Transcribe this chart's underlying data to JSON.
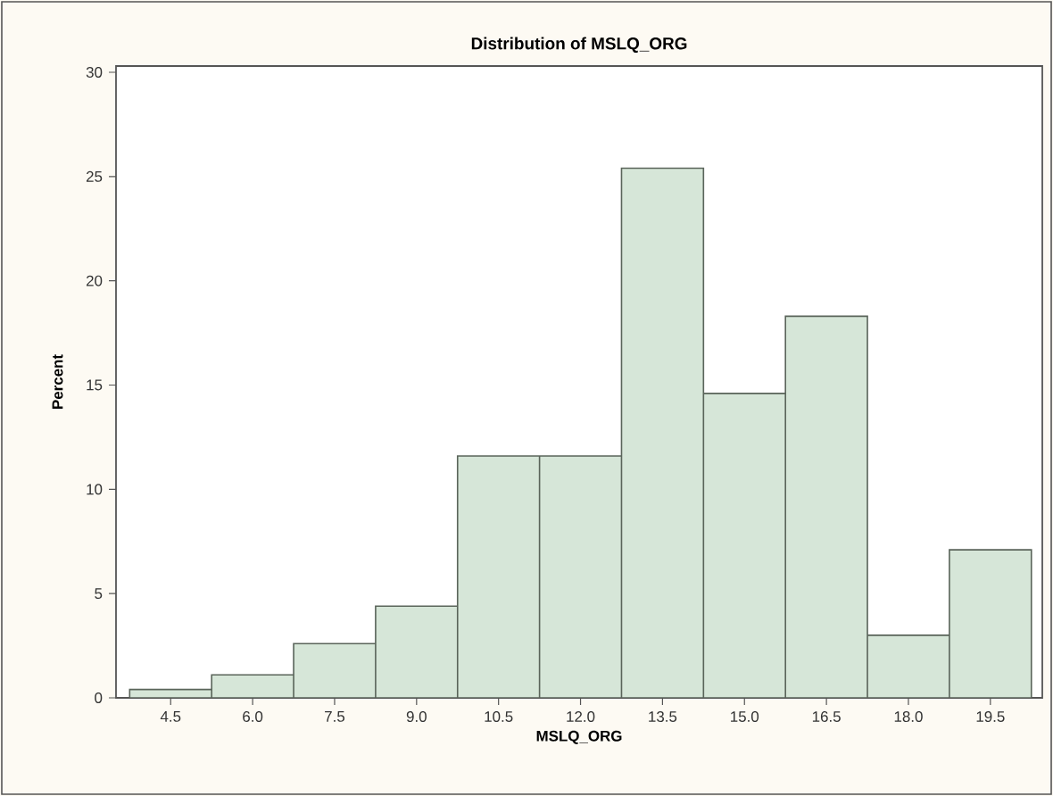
{
  "chart_data": {
    "type": "histogram",
    "title": "Distribution of MSLQ_ORG",
    "xlabel": "MSLQ_ORG",
    "ylabel": "Percent",
    "bins": [
      3.75,
      5.25,
      6.75,
      8.25,
      9.75,
      11.25,
      12.75,
      14.25,
      15.75,
      17.25,
      18.75,
      20.25
    ],
    "values": [
      0.4,
      1.1,
      2.6,
      4.4,
      11.6,
      11.6,
      25.4,
      14.6,
      18.3,
      3.0,
      7.1
    ],
    "color": "#d6e6d8",
    "xlim": [
      3.5,
      20.45
    ],
    "ylim": [
      0,
      30.3
    ],
    "xticks": [
      {
        "value": 4.5,
        "label": "4.5"
      },
      {
        "value": 6,
        "label": "6.0"
      },
      {
        "value": 7.5,
        "label": "7.5"
      },
      {
        "value": 9,
        "label": "9.0"
      },
      {
        "value": 10.5,
        "label": "10.5"
      },
      {
        "value": 12,
        "label": "12.0"
      },
      {
        "value": 13.5,
        "label": "13.5"
      },
      {
        "value": 15,
        "label": "15.0"
      },
      {
        "value": 16.5,
        "label": "16.5"
      },
      {
        "value": 18,
        "label": "18.0"
      },
      {
        "value": 19.5,
        "label": "19.5"
      }
    ],
    "yticks": [
      0,
      5,
      10,
      15,
      20,
      25,
      30
    ]
  }
}
